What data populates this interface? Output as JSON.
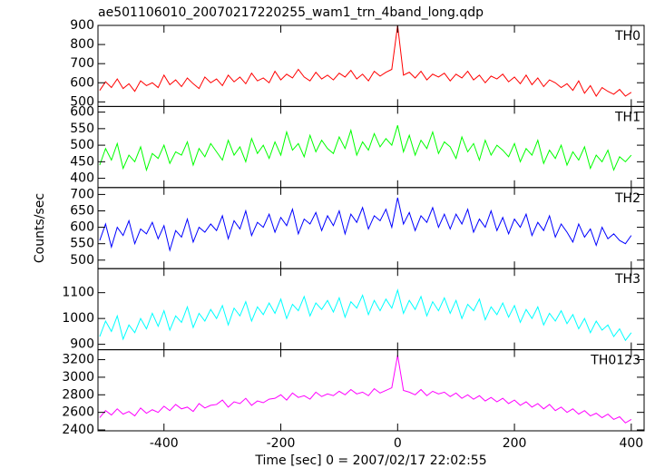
{
  "chart_data": [
    {
      "type": "line",
      "title": "ae501106010_20070217220255_wam1_trn_4band_long.qdp",
      "x": [
        -510,
        -500,
        -490,
        -480,
        -470,
        -460,
        -450,
        -440,
        -430,
        -420,
        -410,
        -400,
        -390,
        -380,
        -370,
        -360,
        -350,
        -340,
        -330,
        -320,
        -310,
        -300,
        -290,
        -280,
        -270,
        -260,
        -250,
        -240,
        -230,
        -220,
        -210,
        -200,
        -190,
        -180,
        -170,
        -160,
        -150,
        -140,
        -130,
        -120,
        -110,
        -100,
        -90,
        -80,
        -70,
        -60,
        -50,
        -40,
        -30,
        -20,
        -10,
        0,
        10,
        20,
        30,
        40,
        50,
        60,
        70,
        80,
        90,
        100,
        110,
        120,
        130,
        140,
        150,
        160,
        170,
        180,
        190,
        200,
        210,
        220,
        230,
        240,
        250,
        260,
        270,
        280,
        290,
        300,
        310,
        320,
        330,
        340,
        350,
        360,
        370,
        380,
        390,
        400
      ],
      "series": [
        {
          "name": "TH0",
          "color": "#ff0000",
          "values": [
            560,
            605,
            575,
            620,
            570,
            595,
            555,
            610,
            585,
            600,
            575,
            640,
            590,
            615,
            580,
            625,
            595,
            570,
            630,
            600,
            620,
            585,
            640,
            605,
            630,
            595,
            650,
            610,
            625,
            600,
            660,
            615,
            645,
            625,
            670,
            630,
            610,
            655,
            620,
            640,
            615,
            650,
            630,
            665,
            620,
            645,
            610,
            660,
            635,
            655,
            670,
            900,
            640,
            655,
            625,
            660,
            615,
            645,
            630,
            650,
            610,
            645,
            625,
            660,
            615,
            640,
            600,
            635,
            620,
            645,
            605,
            630,
            595,
            640,
            590,
            625,
            580,
            615,
            600,
            575,
            595,
            560,
            610,
            545,
            585,
            530,
            575,
            555,
            540,
            565,
            530,
            550
          ]
        }
      ],
      "xlim": [
        -513,
        422
      ],
      "xticks": [
        -400,
        -200,
        0,
        200,
        400
      ],
      "ylim": [
        476,
        900
      ],
      "yticks": [
        500,
        600,
        700,
        800,
        900
      ]
    },
    {
      "type": "line",
      "x": [
        -510,
        -500,
        -490,
        -480,
        -470,
        -460,
        -450,
        -440,
        -430,
        -420,
        -410,
        -400,
        -390,
        -380,
        -370,
        -360,
        -350,
        -340,
        -330,
        -320,
        -310,
        -300,
        -290,
        -280,
        -270,
        -260,
        -250,
        -240,
        -230,
        -220,
        -210,
        -200,
        -190,
        -180,
        -170,
        -160,
        -150,
        -140,
        -130,
        -120,
        -110,
        -100,
        -90,
        -80,
        -70,
        -60,
        -50,
        -40,
        -30,
        -20,
        -10,
        0,
        10,
        20,
        30,
        40,
        50,
        60,
        70,
        80,
        90,
        100,
        110,
        120,
        130,
        140,
        150,
        160,
        170,
        180,
        190,
        200,
        210,
        220,
        230,
        240,
        250,
        260,
        270,
        280,
        290,
        300,
        310,
        320,
        330,
        340,
        350,
        360,
        370,
        380,
        390,
        400
      ],
      "series": [
        {
          "name": "TH1",
          "color": "#00ff00",
          "values": [
            440,
            490,
            455,
            505,
            430,
            470,
            450,
            495,
            425,
            475,
            460,
            500,
            445,
            480,
            470,
            510,
            440,
            490,
            465,
            505,
            480,
            455,
            515,
            470,
            495,
            450,
            520,
            475,
            500,
            460,
            510,
            470,
            540,
            485,
            505,
            465,
            530,
            480,
            515,
            490,
            475,
            525,
            490,
            545,
            470,
            510,
            485,
            535,
            495,
            520,
            500,
            560,
            480,
            530,
            470,
            515,
            490,
            540,
            475,
            510,
            495,
            460,
            525,
            480,
            505,
            455,
            515,
            470,
            500,
            485,
            465,
            505,
            450,
            490,
            470,
            515,
            445,
            485,
            460,
            500,
            440,
            480,
            455,
            495,
            430,
            470,
            450,
            485,
            425,
            465,
            450,
            470
          ]
        }
      ],
      "xlim": [
        -513,
        422
      ],
      "xticks": [
        -400,
        -200,
        0,
        200,
        400
      ],
      "ylim": [
        372,
        617
      ],
      "yticks": [
        400,
        450,
        500,
        550,
        600
      ]
    },
    {
      "type": "line",
      "ylabel": "Counts/sec",
      "x": [
        -510,
        -500,
        -490,
        -480,
        -470,
        -460,
        -450,
        -440,
        -430,
        -420,
        -410,
        -400,
        -390,
        -380,
        -370,
        -360,
        -350,
        -340,
        -330,
        -320,
        -310,
        -300,
        -290,
        -280,
        -270,
        -260,
        -250,
        -240,
        -230,
        -220,
        -210,
        -200,
        -190,
        -180,
        -170,
        -160,
        -150,
        -140,
        -130,
        -120,
        -110,
        -100,
        -90,
        -80,
        -70,
        -60,
        -50,
        -40,
        -30,
        -20,
        -10,
        0,
        10,
        20,
        30,
        40,
        50,
        60,
        70,
        80,
        90,
        100,
        110,
        120,
        130,
        140,
        150,
        160,
        170,
        180,
        190,
        200,
        210,
        220,
        230,
        240,
        250,
        260,
        270,
        280,
        290,
        300,
        310,
        320,
        330,
        340,
        350,
        360,
        370,
        380,
        390,
        400
      ],
      "series": [
        {
          "name": "TH2",
          "color": "#0000ff",
          "values": [
            560,
            610,
            540,
            600,
            575,
            620,
            550,
            595,
            580,
            615,
            565,
            605,
            530,
            590,
            570,
            625,
            555,
            600,
            585,
            610,
            590,
            635,
            565,
            620,
            595,
            650,
            575,
            615,
            600,
            640,
            585,
            630,
            605,
            655,
            580,
            625,
            610,
            645,
            590,
            635,
            605,
            650,
            580,
            640,
            615,
            660,
            595,
            635,
            620,
            655,
            600,
            690,
            610,
            645,
            590,
            635,
            615,
            660,
            600,
            640,
            595,
            640,
            610,
            655,
            585,
            625,
            600,
            650,
            590,
            630,
            580,
            625,
            600,
            640,
            575,
            615,
            590,
            635,
            570,
            610,
            585,
            555,
            610,
            570,
            595,
            545,
            600,
            565,
            580,
            560,
            550,
            575
          ]
        }
      ],
      "xlim": [
        -513,
        422
      ],
      "xticks": [
        -400,
        -200,
        0,
        200,
        400
      ],
      "ylim": [
        474,
        721
      ],
      "yticks": [
        500,
        550,
        600,
        650,
        700
      ]
    },
    {
      "type": "line",
      "x": [
        -510,
        -500,
        -490,
        -480,
        -470,
        -460,
        -450,
        -440,
        -430,
        -420,
        -410,
        -400,
        -390,
        -380,
        -370,
        -360,
        -350,
        -340,
        -330,
        -320,
        -310,
        -300,
        -290,
        -280,
        -270,
        -260,
        -250,
        -240,
        -230,
        -220,
        -210,
        -200,
        -190,
        -180,
        -170,
        -160,
        -150,
        -140,
        -130,
        -120,
        -110,
        -100,
        -90,
        -80,
        -70,
        -60,
        -50,
        -40,
        -30,
        -20,
        -10,
        0,
        10,
        20,
        30,
        40,
        50,
        60,
        70,
        80,
        90,
        100,
        110,
        120,
        130,
        140,
        150,
        160,
        170,
        180,
        190,
        200,
        210,
        220,
        230,
        240,
        250,
        260,
        270,
        280,
        290,
        300,
        310,
        320,
        330,
        340,
        350,
        360,
        370,
        380,
        390,
        400
      ],
      "series": [
        {
          "name": "TH3",
          "color": "#00ffff",
          "values": [
            930,
            990,
            950,
            1010,
            920,
            975,
            945,
            1000,
            960,
            1020,
            970,
            1030,
            955,
            1010,
            985,
            1045,
            965,
            1020,
            990,
            1035,
            1000,
            1050,
            975,
            1040,
            1010,
            1065,
            990,
            1045,
            1015,
            1060,
            1020,
            1075,
            1000,
            1055,
            1030,
            1085,
            1010,
            1060,
            1035,
            1070,
            1025,
            1080,
            1005,
            1065,
            1040,
            1090,
            1015,
            1070,
            1030,
            1075,
            1040,
            1110,
            1020,
            1070,
            1035,
            1085,
            1010,
            1065,
            1030,
            1080,
            1020,
            1070,
            1000,
            1055,
            1030,
            1075,
            995,
            1045,
            1015,
            1060,
            1005,
            1050,
            985,
            1035,
            1000,
            1045,
            975,
            1020,
            990,
            1030,
            980,
            1015,
            960,
            1000,
            945,
            990,
            955,
            975,
            930,
            960,
            915,
            945
          ]
        }
      ],
      "xlim": [
        -513,
        422
      ],
      "xticks": [
        -400,
        -200,
        0,
        200,
        400
      ],
      "ylim": [
        879,
        1193
      ],
      "yticks": [
        900,
        1000,
        1100
      ]
    },
    {
      "type": "line",
      "xlabel": "Time [sec] 0 = 2007/02/17 22:02:55",
      "x": [
        -510,
        -500,
        -490,
        -480,
        -470,
        -460,
        -450,
        -440,
        -430,
        -420,
        -410,
        -400,
        -390,
        -380,
        -370,
        -360,
        -350,
        -340,
        -330,
        -320,
        -310,
        -300,
        -290,
        -280,
        -270,
        -260,
        -250,
        -240,
        -230,
        -220,
        -210,
        -200,
        -190,
        -180,
        -170,
        -160,
        -150,
        -140,
        -130,
        -120,
        -110,
        -100,
        -90,
        -80,
        -70,
        -60,
        -50,
        -40,
        -30,
        -20,
        -10,
        0,
        10,
        20,
        30,
        40,
        50,
        60,
        70,
        80,
        90,
        100,
        110,
        120,
        130,
        140,
        150,
        160,
        170,
        180,
        190,
        200,
        210,
        220,
        230,
        240,
        250,
        260,
        270,
        280,
        290,
        300,
        310,
        320,
        330,
        340,
        350,
        360,
        370,
        380,
        390,
        400
      ],
      "series": [
        {
          "name": "TH0123",
          "color": "#ff00ff",
          "values": [
            2540,
            2620,
            2570,
            2640,
            2580,
            2610,
            2560,
            2650,
            2590,
            2630,
            2600,
            2670,
            2620,
            2690,
            2640,
            2660,
            2610,
            2700,
            2650,
            2680,
            2690,
            2740,
            2660,
            2720,
            2700,
            2760,
            2680,
            2730,
            2710,
            2750,
            2760,
            2800,
            2740,
            2820,
            2770,
            2790,
            2750,
            2830,
            2780,
            2810,
            2790,
            2840,
            2800,
            2860,
            2810,
            2830,
            2790,
            2870,
            2820,
            2850,
            2880,
            3250,
            2850,
            2830,
            2800,
            2860,
            2790,
            2840,
            2810,
            2830,
            2780,
            2820,
            2760,
            2800,
            2750,
            2790,
            2730,
            2770,
            2720,
            2760,
            2700,
            2740,
            2680,
            2720,
            2660,
            2700,
            2640,
            2690,
            2620,
            2660,
            2600,
            2640,
            2580,
            2620,
            2560,
            2590,
            2540,
            2580,
            2520,
            2550,
            2480,
            2520
          ]
        }
      ],
      "xlim": [
        -513,
        422
      ],
      "xticks": [
        -400,
        -200,
        0,
        200,
        400
      ],
      "ylim": [
        2390,
        3313
      ],
      "yticks": [
        2400,
        2600,
        2800,
        3000,
        3200
      ]
    }
  ]
}
